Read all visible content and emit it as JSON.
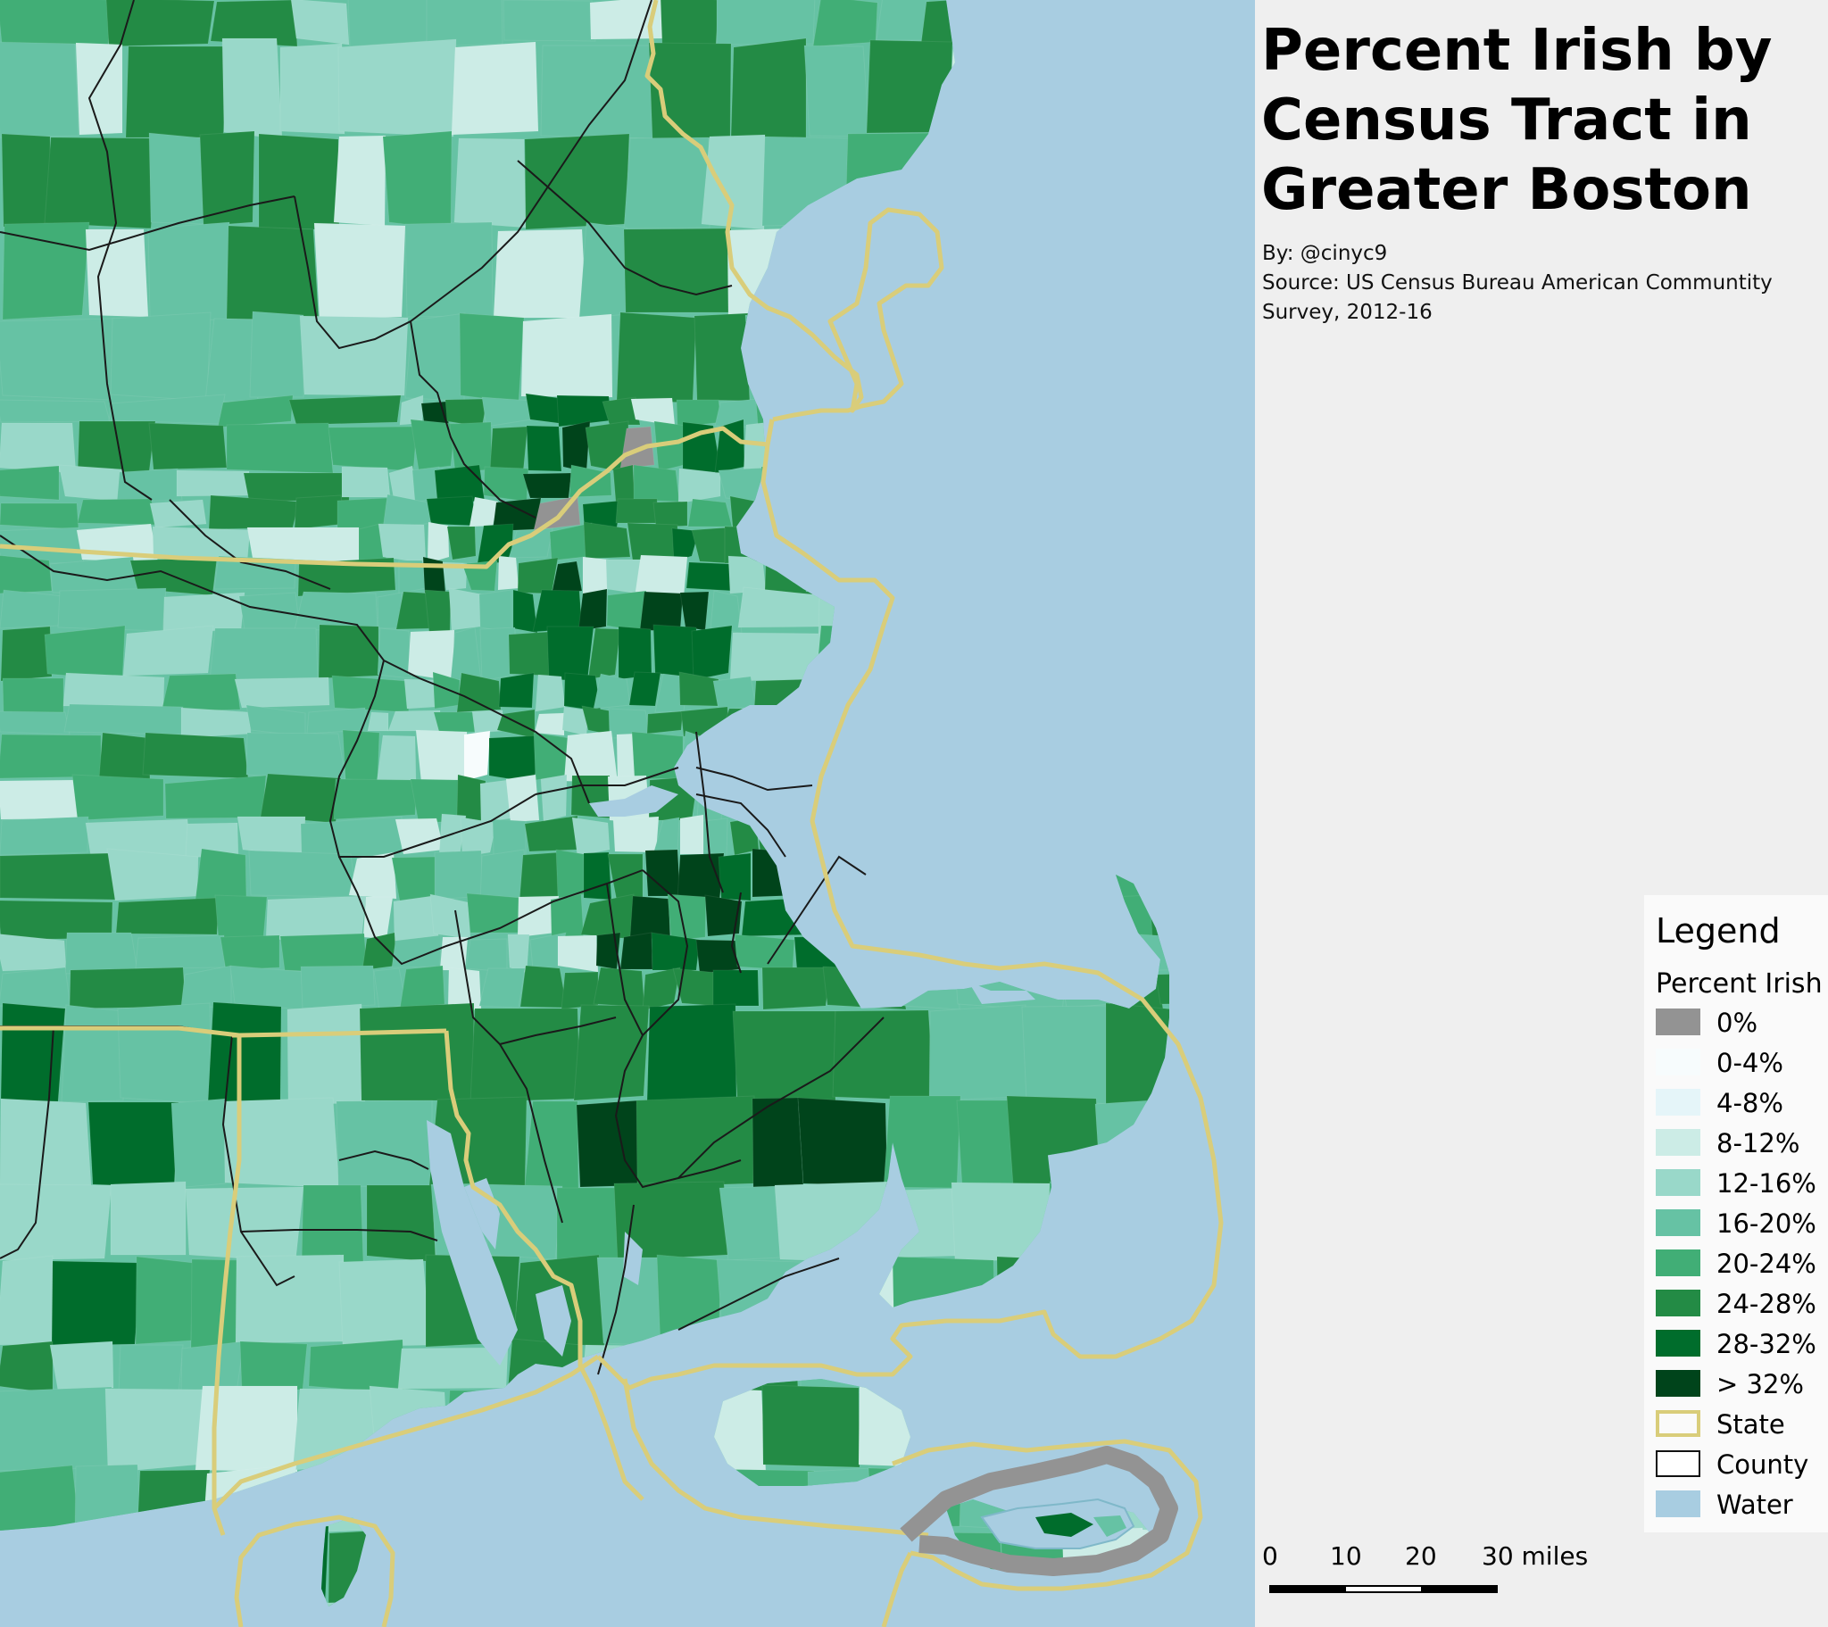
{
  "title": "Percent Irish by Census Tract in Greater Boston",
  "credit": {
    "author": "By: @cinyc9",
    "source": "Source: US Census Bureau American Communtity Survey, 2012-16"
  },
  "legend": {
    "heading": "Legend",
    "subheading": "Percent Irish",
    "classes": [
      {
        "label": "0%",
        "color": "#939393"
      },
      {
        "label": "0-4%",
        "color": "#f7fcfd"
      },
      {
        "label": "4-8%",
        "color": "#e5f5f9"
      },
      {
        "label": "8-12%",
        "color": "#ccece6"
      },
      {
        "label": "12-16%",
        "color": "#99d8c9"
      },
      {
        "label": "16-20%",
        "color": "#66c2a4"
      },
      {
        "label": "20-24%",
        "color": "#41ae76"
      },
      {
        "label": "24-28%",
        "color": "#238b45"
      },
      {
        "label": "28-32%",
        "color": "#006d2c"
      },
      {
        "label": "> 32%",
        "color": "#00441b"
      }
    ],
    "layers": [
      {
        "label": "State",
        "fill": "#fafafa",
        "stroke": "#d9cd7a"
      },
      {
        "label": "County",
        "fill": "#ffffff",
        "stroke": "#111111"
      },
      {
        "label": "Water",
        "fill": "#a8cde1",
        "stroke": "#a8cde1"
      }
    ]
  },
  "scale_bar": {
    "ticks": [
      "0",
      "10",
      "20",
      "30 miles"
    ]
  },
  "colors": {
    "water": "#a8cde1",
    "state_line": "#d9cd7a",
    "county_line": "#1a1a1a",
    "background": "#efefef"
  }
}
